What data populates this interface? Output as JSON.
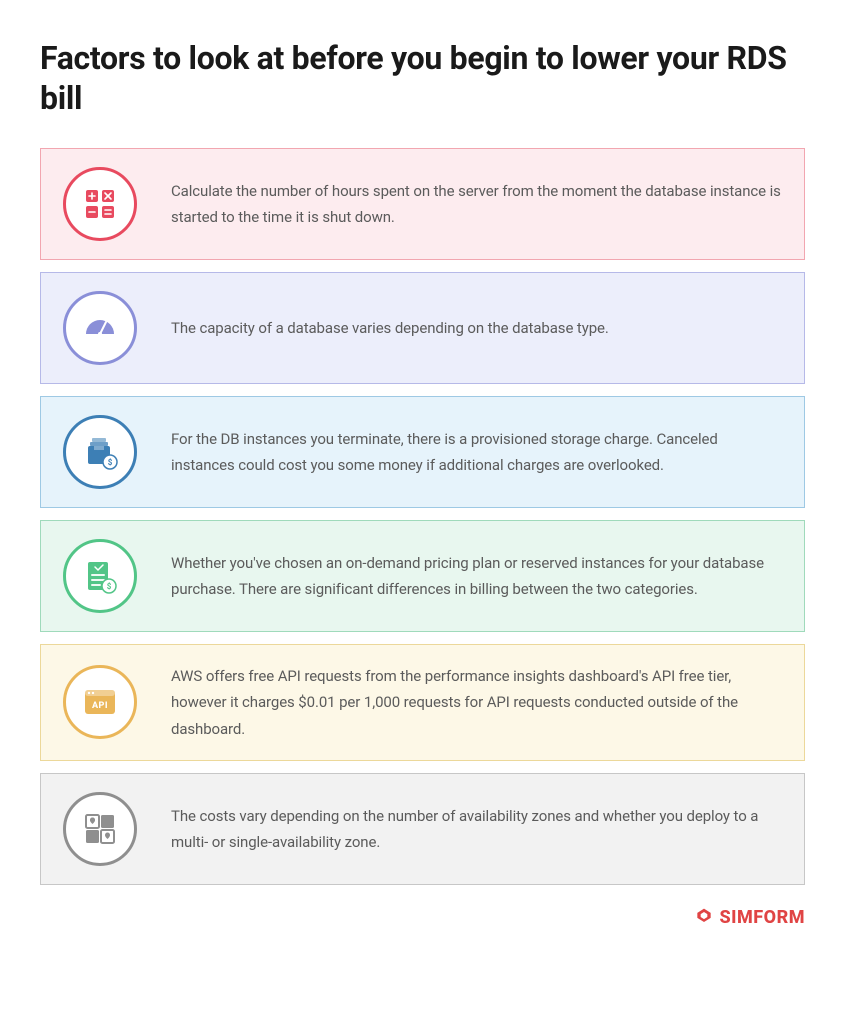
{
  "title": "Factors to look at before you begin to lower your RDS bill",
  "cards": [
    {
      "text": "Calculate the number of hours spent on the server from the moment the database instance is started to the time it is shut down.",
      "bg": "#fdecef",
      "border": "#f2a6b0",
      "icon_color": "#e84a5f",
      "icon": "calculator"
    },
    {
      "text": "The capacity of a database varies depending on the database type.",
      "bg": "#eceefb",
      "border": "#b6b9e8",
      "icon_color": "#8a8fd8",
      "icon": "gauge"
    },
    {
      "text": "For the DB instances you terminate, there is a provisioned storage charge. Canceled instances could cost you some money if additional charges are overlooked.",
      "bg": "#e6f3fb",
      "border": "#9ec9e4",
      "icon_color": "#3d7fb5",
      "icon": "box-money"
    },
    {
      "text": "Whether you've chosen an on-demand pricing plan or reserved instances for your database purchase. There are significant differences in billing between the two categories.",
      "bg": "#e8f7ef",
      "border": "#9fdabb",
      "icon_color": "#52c587",
      "icon": "list-money"
    },
    {
      "text": "AWS offers free API requests from the performance insights dashboard's API free tier, however it charges $0.01 per 1,000 requests for API requests conducted outside of the dashboard.",
      "bg": "#fdf8e7",
      "border": "#ecd89a",
      "icon_color": "#eab659",
      "icon": "api"
    },
    {
      "text": "The costs vary depending on the number of availability zones and whether you deploy to a multi- or single-availability zone.",
      "bg": "#f2f2f2",
      "border": "#c7c7c7",
      "icon_color": "#8f8f8f",
      "icon": "zones"
    }
  ],
  "footer": {
    "brand": "SIMFORM",
    "brand_color": "#e04444"
  }
}
